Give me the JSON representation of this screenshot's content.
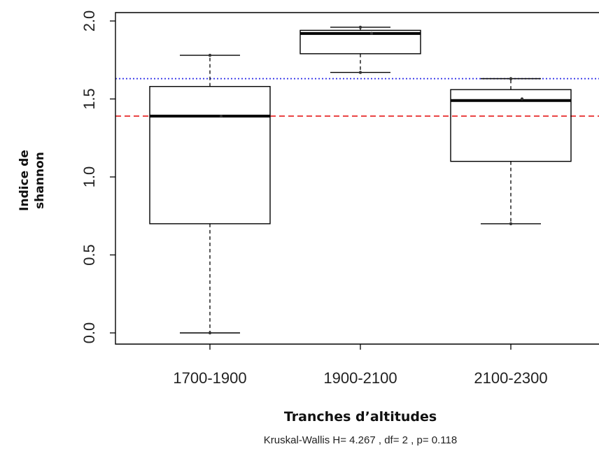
{
  "chart_data": {
    "type": "box",
    "categories": [
      "1700-1900",
      "1900-2100",
      "2100-2300"
    ],
    "boxes": [
      {
        "category": "1700-1900",
        "min": 0.0,
        "q1": 0.7,
        "median": 1.39,
        "q3": 1.58,
        "max": 1.78,
        "points": [
          1.78,
          1.39,
          0.0
        ]
      },
      {
        "category": "1900-2100",
        "min": 1.67,
        "q1": 1.79,
        "median": 1.92,
        "q3": 1.94,
        "max": 1.96,
        "points": [
          1.96,
          1.92,
          1.67
        ]
      },
      {
        "category": "2100-2300",
        "min": 0.7,
        "q1": 1.1,
        "median": 1.49,
        "q3": 1.56,
        "max": 1.63,
        "points": [
          1.63,
          1.5,
          0.7
        ]
      }
    ],
    "reference_lines": [
      {
        "value": 1.63,
        "color": "#2a2ae8",
        "style": "dotted"
      },
      {
        "value": 1.39,
        "color": "#e82a2a",
        "style": "dashed"
      }
    ],
    "ylim": [
      -0.08,
      2.06
    ],
    "yticks": [
      "0.0",
      "0.5",
      "1.0",
      "1.5",
      "2.0"
    ],
    "ylabel_line1": "Indice de",
    "ylabel_line2": "shannon",
    "xlabel": "Tranches d’altitudes",
    "annotation": "Kruskal-Wallis H= 4.267 , df= 2 , p= 0.118",
    "grid": false
  }
}
